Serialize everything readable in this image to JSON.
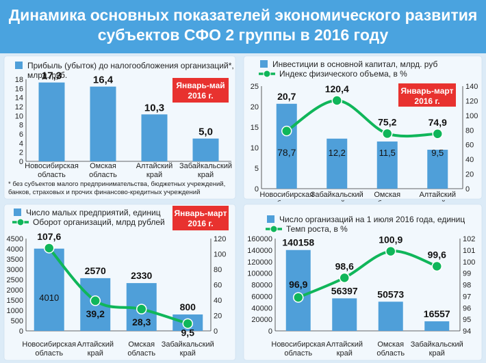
{
  "title": {
    "line1": "Динамика основных показателей экономического развития",
    "line2": "субъектов СФО 2 группы в 2016 году"
  },
  "colors": {
    "header": "#4aa3df",
    "bar": "#4f9fd9",
    "line": "#10b65a",
    "badge": "#e8322f",
    "background": "#dcebf7"
  },
  "chart_data": [
    {
      "id": "c1",
      "type": "bar",
      "badge": "Январь-май\n2016 г.",
      "legend": [
        "Прибыль (убыток) до налогообложения организаций*,",
        "млрд. руб."
      ],
      "categories": [
        [
          "Новосибирская",
          "область"
        ],
        [
          "Омская",
          "область"
        ],
        [
          "Алтайский",
          "край"
        ],
        [
          "Забайкальский",
          "край"
        ]
      ],
      "series": [
        {
          "values": [
            17.3,
            16.4,
            10.3,
            5.0
          ],
          "labels": [
            "17,3",
            "16,4",
            "10,3",
            "5,0"
          ]
        }
      ],
      "ylim": [
        0,
        18
      ],
      "yticks": [
        0,
        2,
        4,
        6,
        8,
        10,
        12,
        14,
        16,
        18
      ],
      "grid": false,
      "footnote": [
        "* без субъектов малого предпринимательства, бюджетных учреждений,",
        "банков, страховых и прочих финансово-кредитных учреждений"
      ]
    },
    {
      "id": "c2",
      "type": "bar+line",
      "badge": "Январь-март\n2016 г.",
      "legend": [
        "Инвестиции в основной капитал, млрд. руб",
        "Индекс физического объема, в %"
      ],
      "categories": [
        [
          "Новосибирская",
          "область"
        ],
        [
          "Забайкальский",
          "край"
        ],
        [
          "Омская",
          "область"
        ],
        [
          "Алтайский",
          "край"
        ]
      ],
      "bars": {
        "values": [
          20.7,
          12.2,
          11.5,
          9.5
        ],
        "labels": [
          "20,7",
          "12,2",
          "11,5",
          "9,5"
        ]
      },
      "line": {
        "values": [
          78.7,
          120.4,
          75.2,
          74.9
        ],
        "labels": [
          "78,7",
          "120,4",
          "75,2",
          "74,9"
        ]
      },
      "ylim_left": [
        0,
        25
      ],
      "yticks_left": [
        0,
        5,
        10,
        15,
        20,
        25
      ],
      "ylim_right": [
        0,
        140
      ],
      "yticks_right": [
        0,
        20,
        40,
        60,
        80,
        100,
        120,
        140
      ],
      "grid": false
    },
    {
      "id": "c3",
      "type": "bar+line",
      "badge": "Январь-март\n2016 г.",
      "legend": [
        "Число малых предприятий, единиц",
        "Оборот организаций, млрд рублей"
      ],
      "categories": [
        [
          "Новосибирская",
          "область"
        ],
        [
          "Алтайский",
          "край"
        ],
        [
          "Омская",
          "область"
        ],
        [
          "Забайкальский",
          "край"
        ]
      ],
      "bars": {
        "values": [
          4010,
          2570,
          2330,
          800
        ],
        "labels": [
          "4010",
          "2570",
          "2330",
          "800"
        ]
      },
      "line": {
        "values": [
          107.6,
          39.2,
          28.3,
          9.5
        ],
        "labels": [
          "107,6",
          "39,2",
          "28,3",
          "9,5"
        ]
      },
      "ylim_left": [
        0,
        4500
      ],
      "yticks_left": [
        0,
        500,
        1000,
        1500,
        2000,
        2500,
        3000,
        3500,
        4000,
        4500
      ],
      "ylim_right": [
        0,
        120
      ],
      "yticks_right": [
        0,
        20,
        40,
        60,
        80,
        100,
        120
      ],
      "grid": false
    },
    {
      "id": "c4",
      "type": "bar+line",
      "badge": "",
      "legend": [
        "Число организаций на 1 июля 2016 года, единиц",
        "Темп роста, в %"
      ],
      "categories": [
        [
          "Новосибирская",
          "область"
        ],
        [
          "Алтайский",
          "край"
        ],
        [
          "Омская",
          "область"
        ],
        [
          "Забайкальский",
          "край"
        ]
      ],
      "bars": {
        "values": [
          140158,
          56397,
          50573,
          16557
        ],
        "labels": [
          "140158",
          "56397",
          "50573",
          "16557"
        ]
      },
      "line": {
        "values": [
          96.9,
          98.6,
          100.9,
          99.6
        ],
        "labels": [
          "96,9",
          "98,6",
          "100,9",
          "99,6"
        ]
      },
      "ylim_left": [
        0,
        160000
      ],
      "yticks_left": [
        0,
        20000,
        40000,
        60000,
        80000,
        100000,
        120000,
        140000,
        160000
      ],
      "ylim_right": [
        94,
        102
      ],
      "yticks_right": [
        94,
        95,
        96,
        97,
        98,
        99,
        100,
        101,
        102
      ],
      "grid": false
    }
  ]
}
